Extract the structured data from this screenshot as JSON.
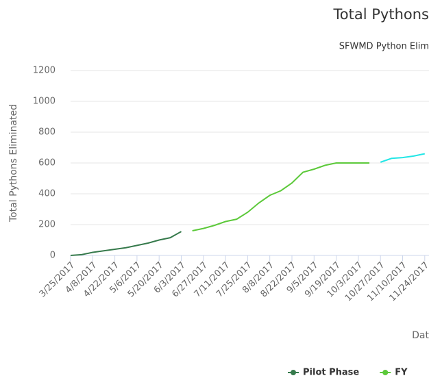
{
  "chart_data": {
    "type": "line",
    "title": "Total Pythons",
    "subtitle": "SFWMD Python Elim",
    "xlabel": "Dat",
    "ylabel": "Total Pythons Eliminated",
    "categories": [
      "3/25/2017",
      null,
      "4/8/2017",
      null,
      "4/22/2017",
      null,
      "5/6/2017",
      null,
      "5/20/2017",
      null,
      "6/3/2017",
      null,
      "6/27/2017",
      null,
      "7/11/2017",
      null,
      "7/25/2017",
      null,
      "8/8/2017",
      null,
      "8/22/2017",
      null,
      "9/5/2017",
      null,
      "9/19/2017",
      null,
      "10/3/2017",
      null,
      "10/27/2017",
      null,
      "11/10/2017",
      null,
      "11/24/2017"
    ],
    "series": [
      {
        "name": "Pilot Phase",
        "color": "#367a4c",
        "values": [
          0,
          5,
          20,
          30,
          40,
          50,
          65,
          80,
          100,
          115,
          155,
          null,
          null,
          null,
          null,
          null,
          null,
          null,
          null,
          null,
          null,
          null,
          null,
          null,
          null,
          null,
          null,
          null,
          null,
          null,
          null,
          null,
          null
        ]
      },
      {
        "name": "FY",
        "color": "#5cc93a",
        "values": [
          null,
          null,
          null,
          null,
          null,
          null,
          null,
          null,
          null,
          null,
          null,
          160,
          175,
          195,
          220,
          235,
          280,
          340,
          390,
          420,
          470,
          540,
          560,
          585,
          600,
          600,
          600,
          600,
          null,
          null,
          null,
          null,
          null
        ]
      },
      {
        "color": "#22e6e6",
        "values": [
          null,
          null,
          null,
          null,
          null,
          null,
          null,
          null,
          null,
          null,
          null,
          null,
          null,
          null,
          null,
          null,
          null,
          null,
          null,
          null,
          null,
          null,
          null,
          null,
          null,
          null,
          null,
          null,
          605,
          630,
          635,
          645,
          660
        ]
      }
    ],
    "ylim": [
      0,
      1200
    ],
    "yticks": [
      0,
      200,
      400,
      600,
      800,
      1000,
      1200
    ],
    "grid": true
  }
}
